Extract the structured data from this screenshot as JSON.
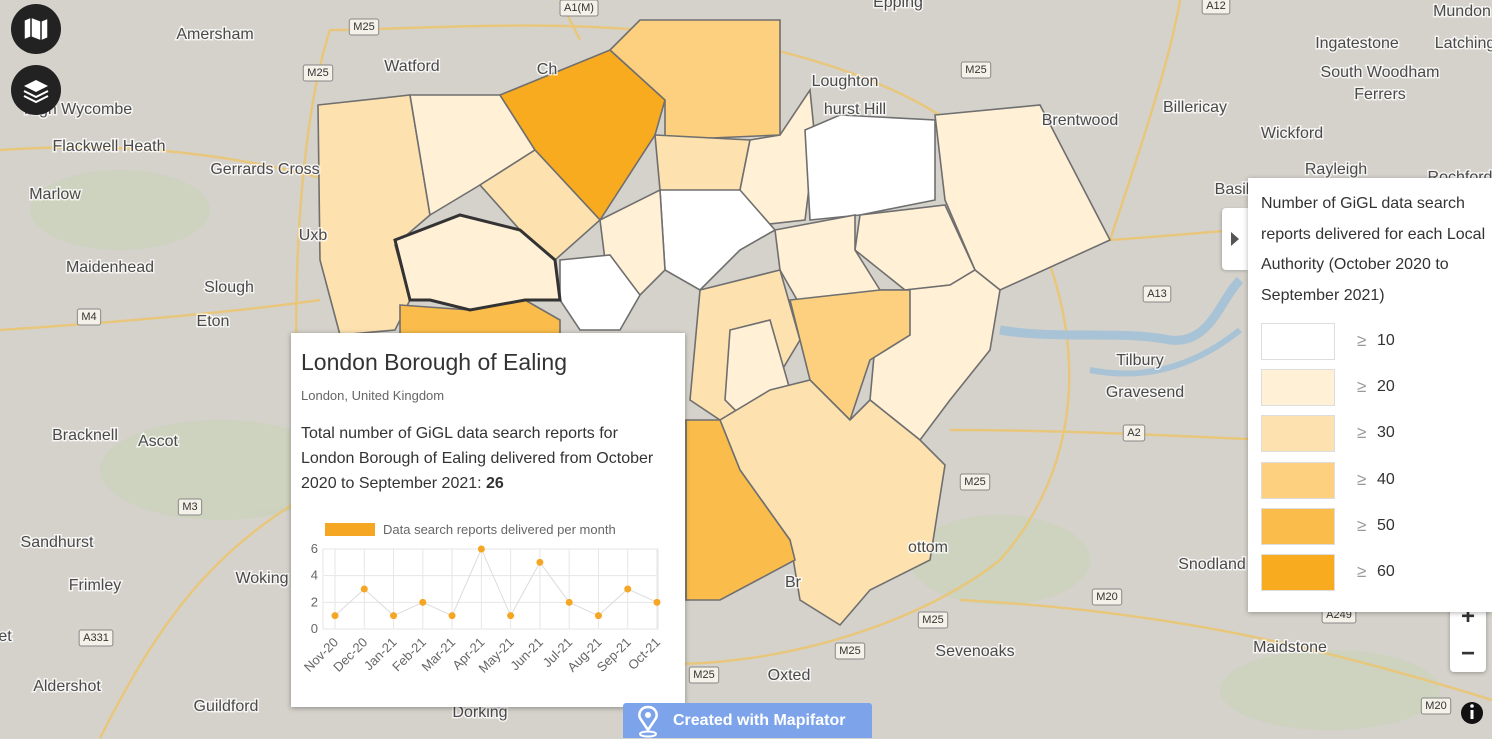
{
  "places": [
    "Amersham",
    "Watford",
    "Epping",
    "Ingatestone",
    "Mundon",
    "Latching",
    "High Wycombe",
    "Loughton",
    "Billericay",
    "South Woodham",
    "Ferrers",
    "Flackwell Heath",
    "Brentwood",
    "Wickford",
    "Gerrards Cross",
    "Rayleigh",
    "Basil",
    "Rochford",
    "Marlow",
    "Uxb",
    "Maidenhead",
    "Slough",
    "Eton",
    "Tilbury",
    "Gravesend",
    "Bracknell",
    "Ascot",
    "Sandhurst",
    "Woking",
    "Frimley",
    "Snodland",
    "Sevenoaks",
    "Maidstone",
    "Oxted",
    "Aldershot",
    "Guildford",
    "Dorking",
    "ottom",
    "Br",
    "hurst Hill",
    "Ch",
    "et"
  ],
  "roads": [
    "A1(M)",
    "M25",
    "M25",
    "A12",
    "M25",
    "M4",
    "A13",
    "A2",
    "M25",
    "M3",
    "A331",
    "M20",
    "M25",
    "M25",
    "M25",
    "A249",
    "M20"
  ],
  "popup": {
    "title": "London Borough of Ealing",
    "subtitle": "London, United Kingdom",
    "body": "Total number of GiGL data search reports for London Borough of Ealing delivered from October 2020 to September 2021: ",
    "total": "26"
  },
  "chart_data": {
    "type": "line",
    "categories": [
      "Nov-20",
      "Dec-20",
      "Jan-21",
      "Feb-21",
      "Mar-21",
      "Apr-21",
      "May-21",
      "Jun-21",
      "Jul-21",
      "Aug-21",
      "Sep-21",
      "Oct-21"
    ],
    "series": [
      {
        "name": "Data search reports delivered per month",
        "color": "#f5a623",
        "values": [
          1,
          3,
          1,
          2,
          1,
          6,
          1,
          5,
          2,
          1,
          3,
          2
        ]
      }
    ],
    "ylim": [
      0,
      6
    ],
    "yticks": [
      0,
      2,
      4,
      6
    ],
    "grid": true,
    "line_color": "#dcdcdc"
  },
  "legend": {
    "title": "Number of GiGL data search reports delivered for each Local Authority (October 2020 to September 2021)",
    "comparator": "≥",
    "items": [
      {
        "value": 10,
        "color": "#ffffff"
      },
      {
        "value": 20,
        "color": "#fff0d6"
      },
      {
        "value": 30,
        "color": "#fde2b0"
      },
      {
        "value": 40,
        "color": "#fcd07e"
      },
      {
        "value": 50,
        "color": "#fabd4c"
      },
      {
        "value": 60,
        "color": "#f8ab1f"
      }
    ]
  },
  "zoom_controls": [
    "+",
    "−"
  ],
  "credit": "Created with Mapifator"
}
